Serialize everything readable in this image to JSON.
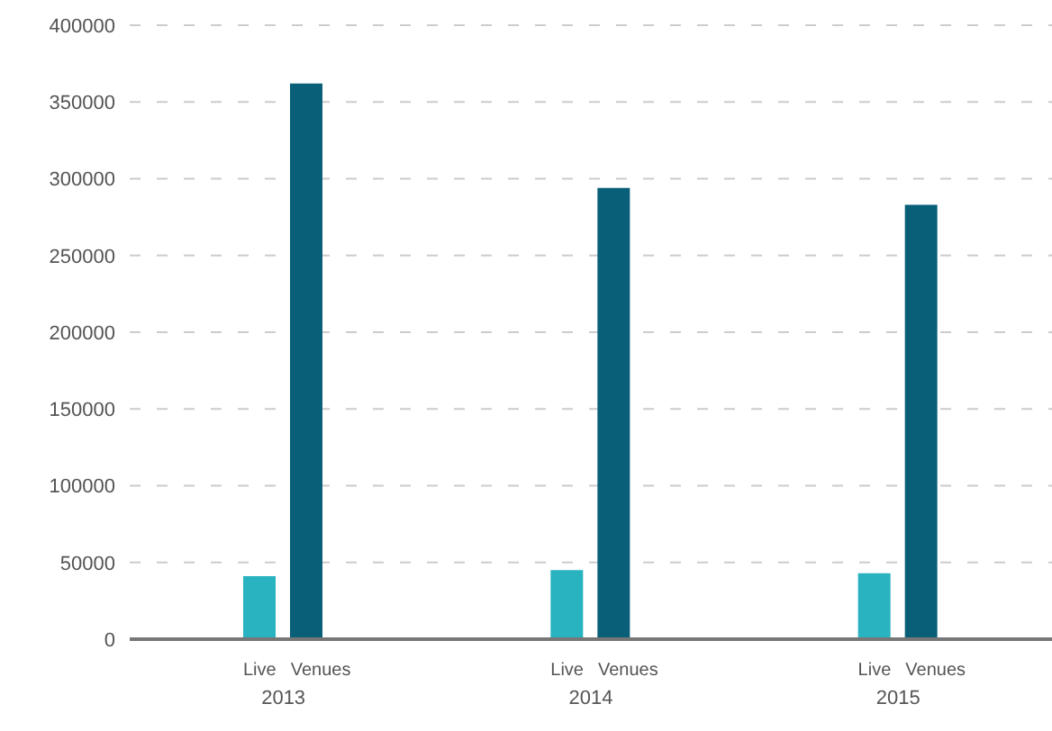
{
  "chart_data": {
    "type": "bar",
    "categories": [
      "2013",
      "2014",
      "2015"
    ],
    "series": [
      {
        "name": "Live",
        "color": "#29b3c0",
        "values": [
          41000,
          45000,
          43000
        ]
      },
      {
        "name": "Venues",
        "color": "#0a5f78",
        "values": [
          362000,
          294000,
          283000
        ]
      }
    ],
    "ylim": [
      0,
      400000
    ],
    "yticks": [
      0,
      50000,
      100000,
      150000,
      200000,
      250000,
      300000,
      350000,
      400000
    ],
    "grid": "y",
    "legend": false
  }
}
